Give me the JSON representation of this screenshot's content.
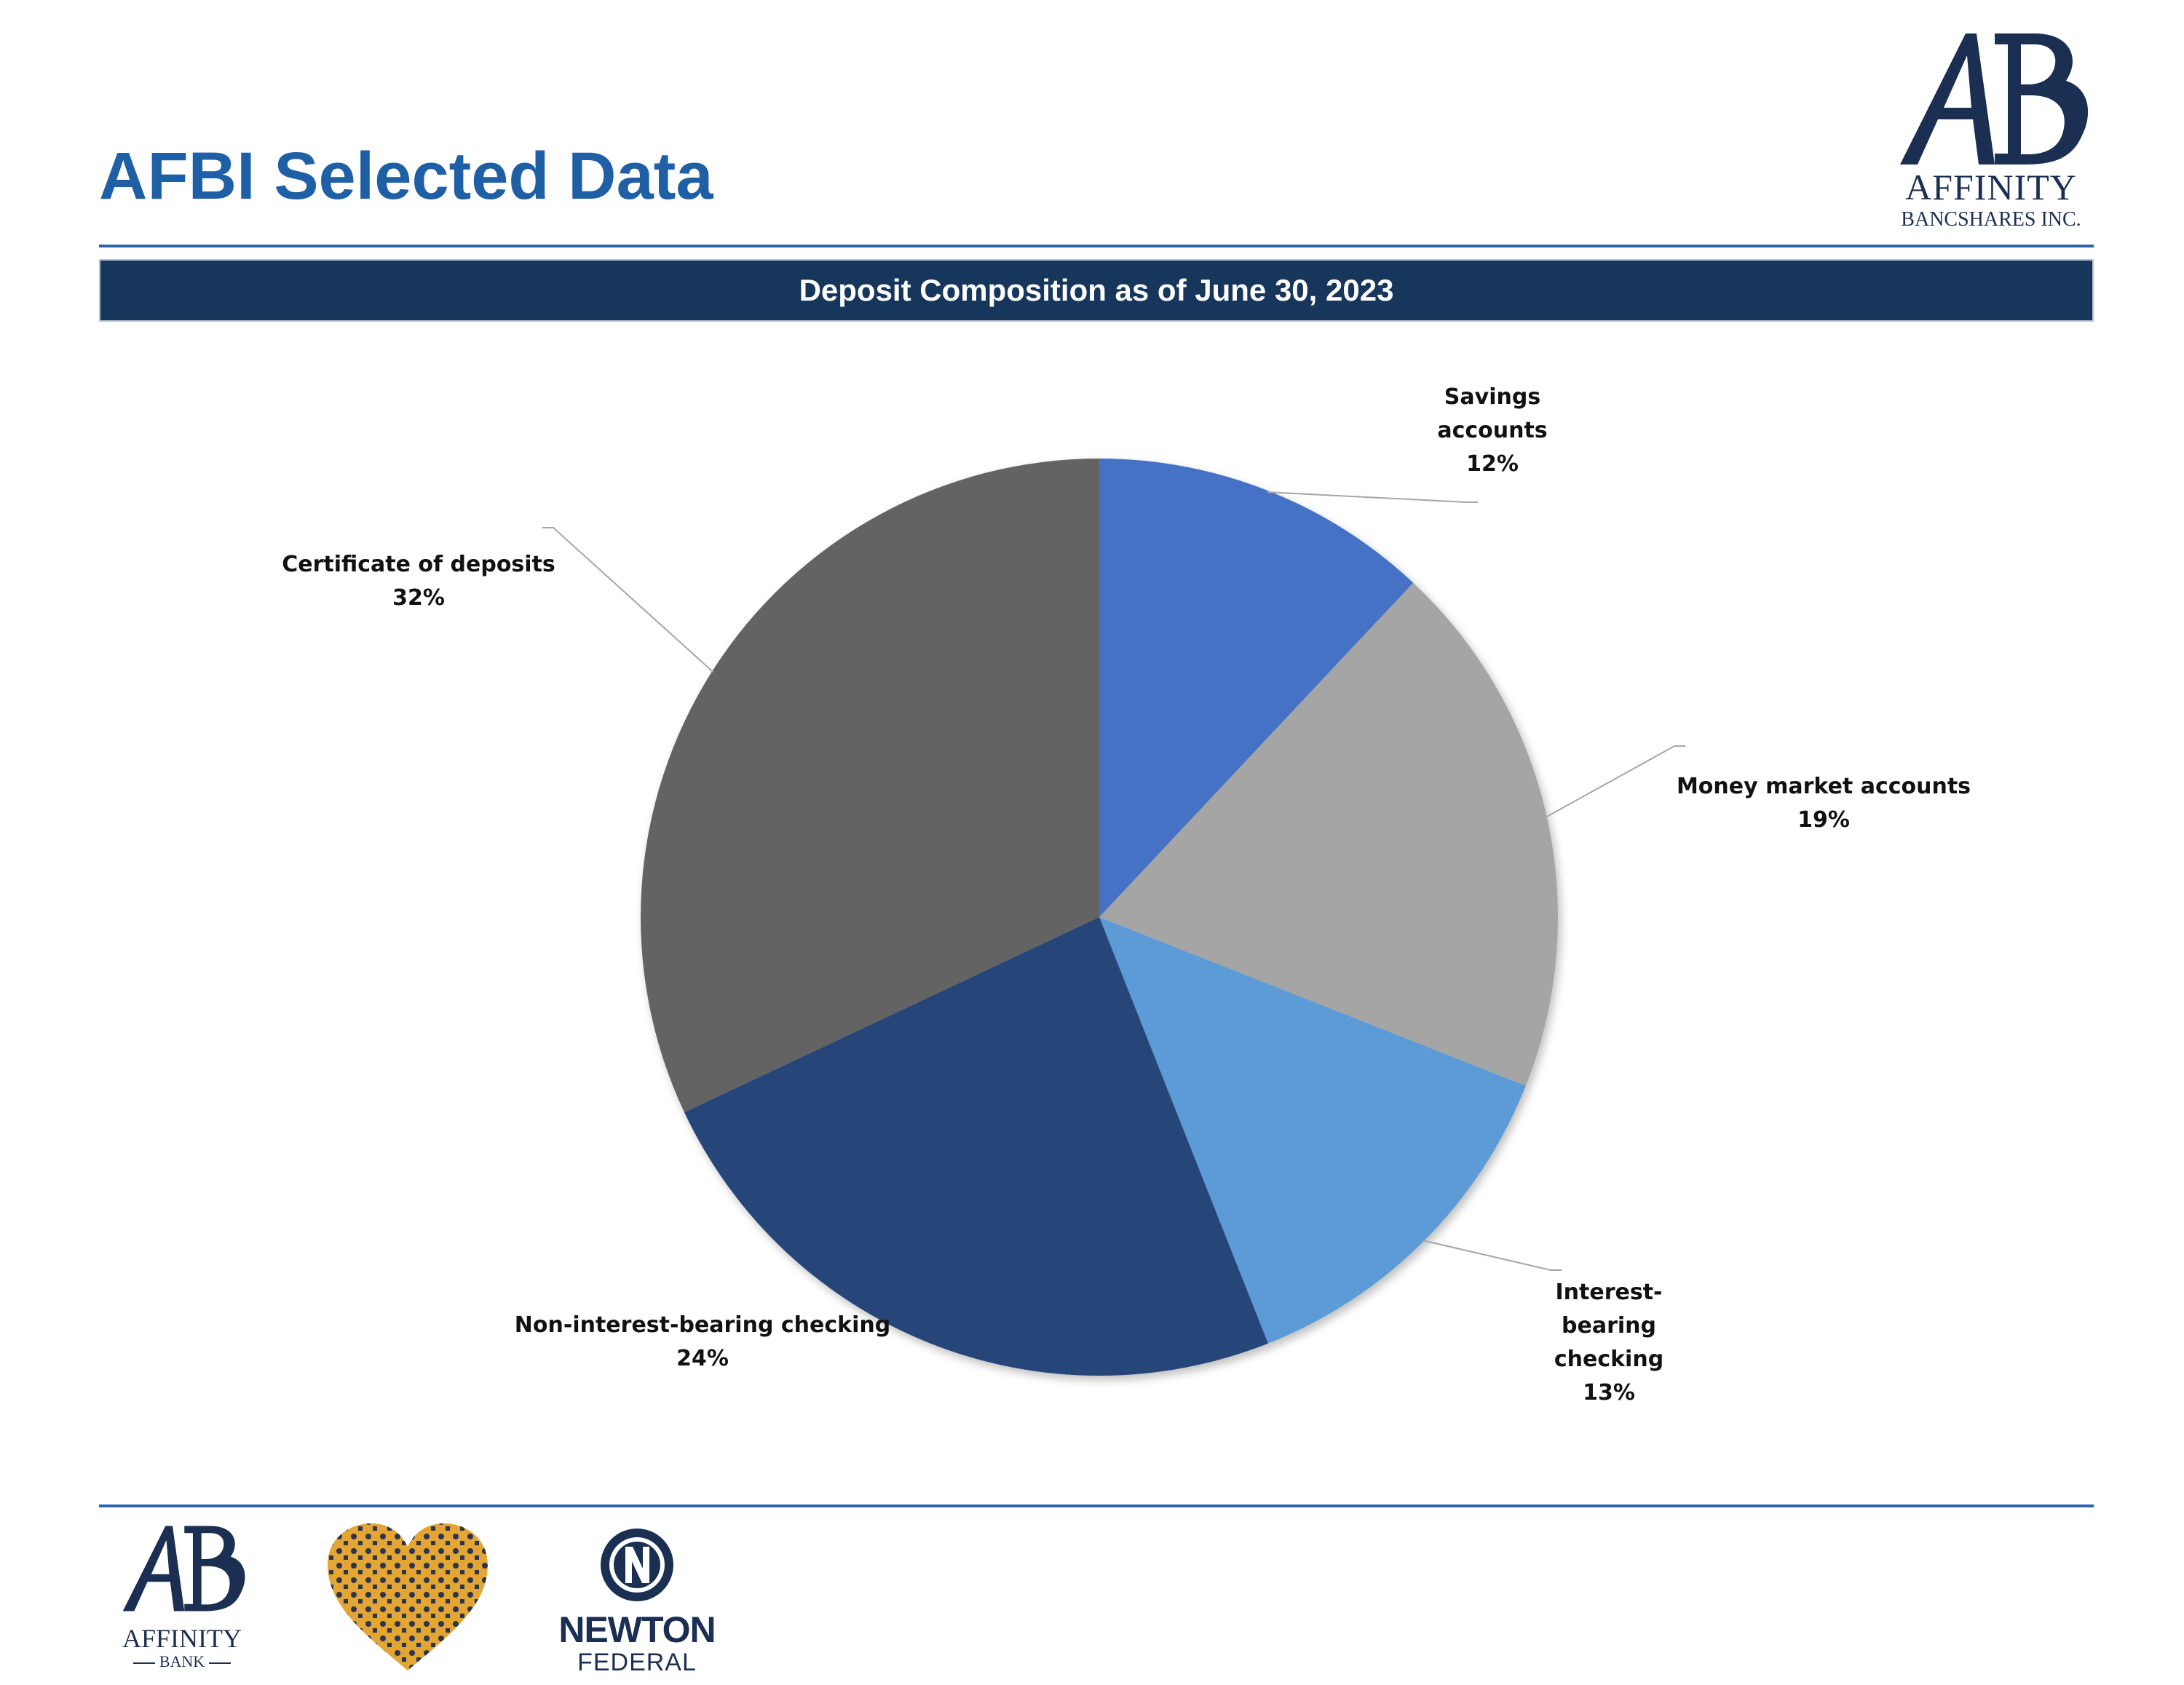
{
  "header": {
    "title": "AFBI Selected Data",
    "logo_name": "AFFINITY",
    "logo_sub": "BANCSHARES INC."
  },
  "chart_data": {
    "type": "pie",
    "title": "Deposit Composition as of June 30, 2023",
    "start_angle": "12 o'clock",
    "direction": "clockwise",
    "categories": [
      "Savings accounts",
      "Money market accounts",
      "Interest-bearing checking",
      "Non-interest-bearing checking",
      "Certificate of deposits"
    ],
    "values": [
      12,
      19,
      13,
      24,
      32
    ],
    "value_labels": [
      "12%",
      "19%",
      "13%",
      "24%",
      "32%"
    ],
    "label_lines": [
      [
        "Savings",
        "accounts",
        "12%"
      ],
      [
        "Money market accounts",
        "19%"
      ],
      [
        "Interest-",
        "bearing",
        "checking",
        "13%"
      ],
      [
        "Non-interest-bearing checking",
        "24%"
      ],
      [
        "Certificate of deposits",
        "32%"
      ]
    ],
    "colors": [
      "#4472c4",
      "#a5a5a5",
      "#5b9bd5",
      "#264478",
      "#636363"
    ],
    "legend": "none"
  },
  "footer": {
    "affinity_bank_name": "AFFINITY",
    "affinity_bank_sub": "BANK",
    "newton_name": "NEWTON",
    "newton_sub": "FEDERAL",
    "heart_logo_icon": "heart-mosaic-logo"
  },
  "colors": {
    "title_blue": "#1f5fa6",
    "banner_navy": "#16365c",
    "rule_blue": "#2d64a8"
  }
}
